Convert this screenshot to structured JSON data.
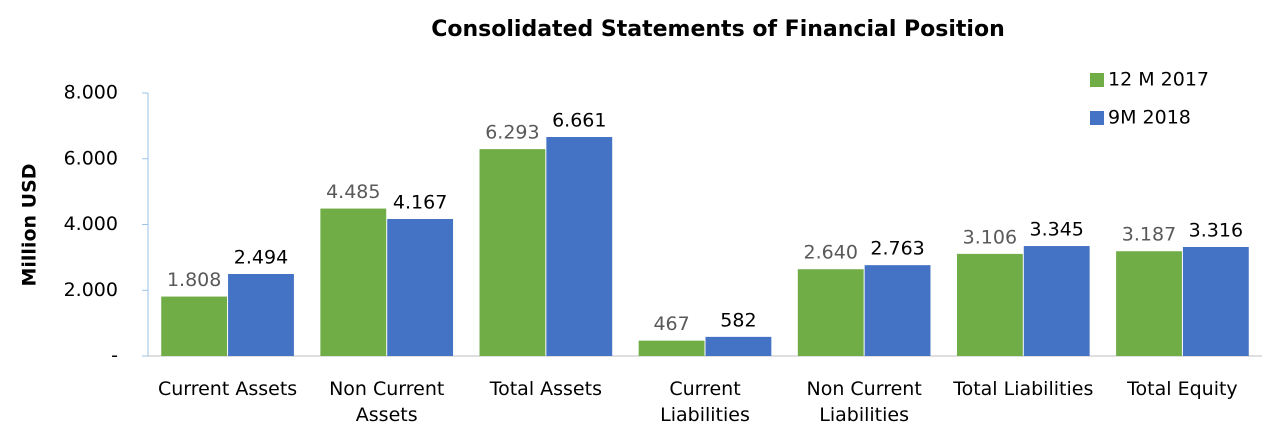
{
  "chart_data": {
    "type": "bar",
    "title": "Consolidated Statements of Financial Position",
    "y_label": "Million USD",
    "categories": [
      "Current Assets",
      "Non Current Assets",
      "Total Assets",
      "Current Liabilities",
      "Non Current Liabilities",
      "Total Liabilities",
      "Total Equity"
    ],
    "series": [
      {
        "name": "12 M 2017",
        "color": "#70ad47",
        "values": [
          1808,
          4485,
          6293,
          467,
          2640,
          3106,
          3187
        ],
        "value_labels": [
          "1.808",
          "4.485",
          "6.293",
          "467",
          "2.640",
          "3.106",
          "3.187"
        ],
        "label_color": "#595959"
      },
      {
        "name": "9M 2018",
        "color": "#4472c4",
        "values": [
          2494,
          4167,
          6661,
          582,
          2763,
          3345,
          3316
        ],
        "value_labels": [
          "2.494",
          "4.167",
          "6.661",
          "582",
          "2.763",
          "3.345",
          "3.316"
        ],
        "label_color": "#000000"
      }
    ],
    "ylim": [
      0,
      8000
    ],
    "yticks": [
      {
        "value": 0,
        "label": "-"
      },
      {
        "value": 2000,
        "label": "2.000"
      },
      {
        "value": 4000,
        "label": "4.000"
      },
      {
        "value": 6000,
        "label": "6.000"
      },
      {
        "value": 8000,
        "label": "8.000"
      }
    ],
    "grid": false,
    "legend": "top-right"
  }
}
